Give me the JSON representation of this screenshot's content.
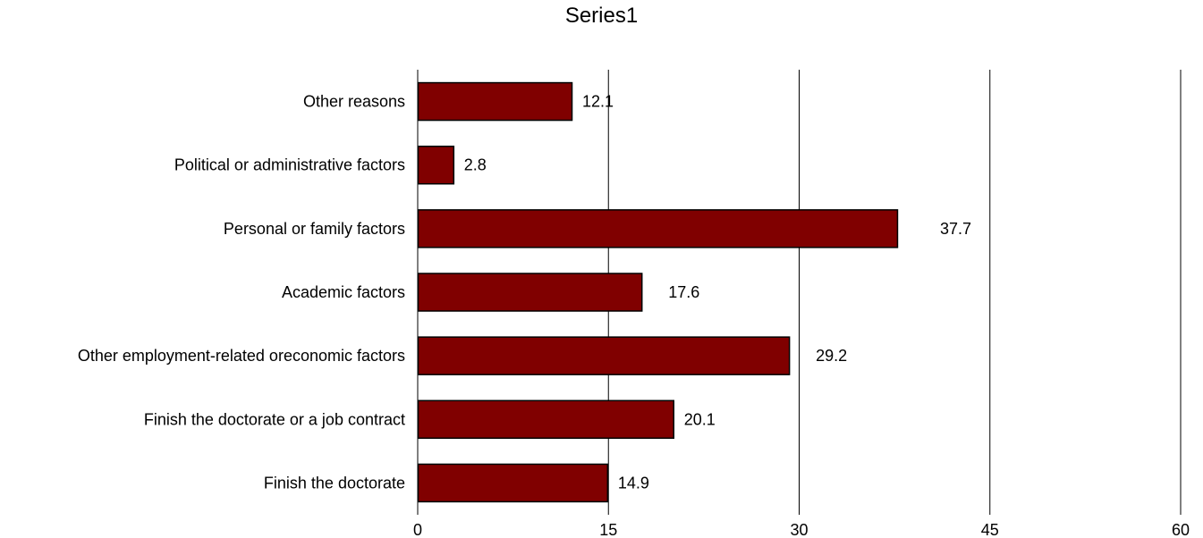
{
  "chart_data": {
    "type": "bar",
    "orientation": "horizontal",
    "title": "Series1",
    "categories": [
      "Finish the doctorate",
      "Finish the doctorate or a job contract",
      "Other employment-related oreconomic factors",
      "Academic factors",
      "Personal or family factors",
      "Political or administrative factors",
      "Other reasons"
    ],
    "values": [
      14.9,
      20.1,
      29.2,
      17.6,
      37.7,
      2.8,
      12.1
    ],
    "data_labels": [
      "14.9",
      "20.1",
      "29.2",
      "17.6",
      "37.7",
      "2.8",
      "12.1"
    ],
    "xlim": [
      0,
      60
    ],
    "x_ticks": [
      0,
      15,
      30,
      45,
      60
    ],
    "x_tick_labels": [
      "0",
      "15",
      "30",
      "45",
      "60"
    ],
    "xlabel": "",
    "ylabel": "",
    "grid": "vertical major gridlines",
    "legend": "none",
    "colors": {
      "bar_fill": "#800000",
      "bar_stroke": "#000000",
      "gridline": "#000000"
    }
  }
}
